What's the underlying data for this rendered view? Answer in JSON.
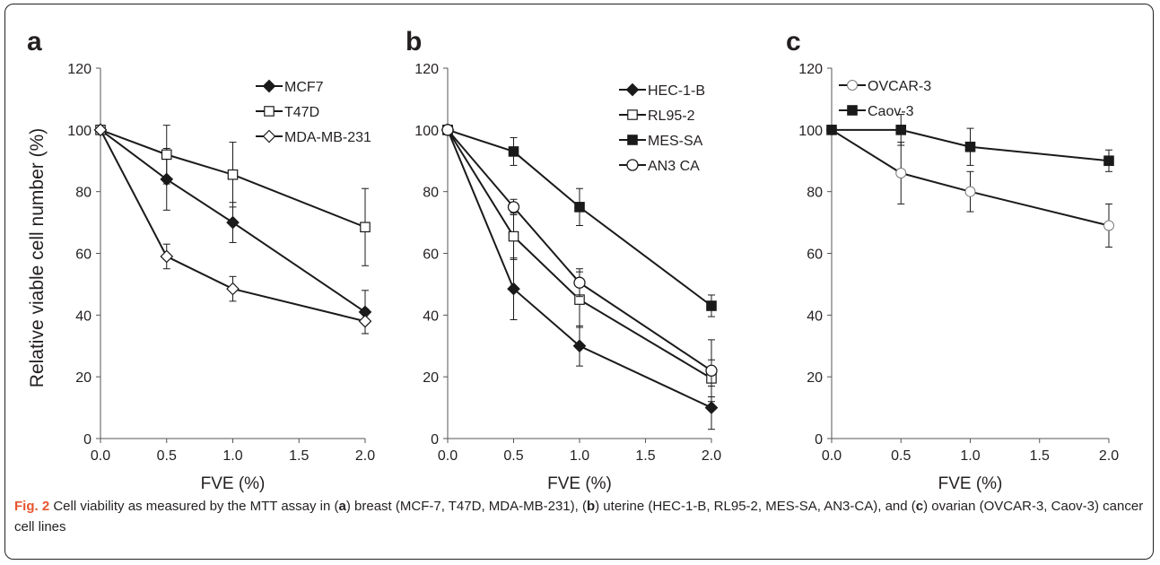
{
  "caption": {
    "label": "Fig. 2",
    "parts": [
      {
        "t": " Cell viability as measured by the MTT assay in ("
      },
      {
        "t": "a",
        "b": true
      },
      {
        "t": ") breast (MCF-7, T47D, MDA-MB-231), ("
      },
      {
        "t": "b",
        "b": true
      },
      {
        "t": ") uterine (HEC-1-B, RL95-2, MES-SA, AN3-CA), and ("
      },
      {
        "t": "c",
        "b": true
      },
      {
        "t": ") ovarian (OVCAR-3, Caov-3) cancer cell lines"
      }
    ]
  },
  "colors": {
    "line": "#1a1a1a",
    "text": "#231f20",
    "label_accent": "#e8542e"
  },
  "chart_data": [
    {
      "panel_label": "a",
      "type": "line",
      "xlabel": "FVE (%)",
      "ylabel": "Relative viable cell number (%)",
      "xlim": [
        0,
        2
      ],
      "ylim": [
        0,
        120
      ],
      "xticks": [
        "0.0",
        "0.5",
        "1.0",
        "1.5",
        "2.0"
      ],
      "yticks": [
        "0",
        "20",
        "40",
        "60",
        "80",
        "100",
        "120"
      ],
      "grid": false,
      "legend_position": "top-right",
      "series": [
        {
          "name": "MCF7",
          "marker": "diamond-filled",
          "x": [
            0,
            0.5,
            1,
            2
          ],
          "y": [
            100,
            84,
            70,
            41
          ],
          "err": [
            0,
            10,
            6.5,
            7
          ]
        },
        {
          "name": "T47D",
          "marker": "square-open",
          "x": [
            0,
            0.5,
            1,
            2
          ],
          "y": [
            100,
            92,
            85.5,
            68.5
          ],
          "err": [
            0,
            9.5,
            10.5,
            12.5
          ]
        },
        {
          "name": "MDA-MB-231",
          "marker": "diamond-open",
          "x": [
            0,
            0.5,
            1,
            2
          ],
          "y": [
            100,
            59,
            48.5,
            38
          ],
          "err": [
            0,
            4,
            4,
            4
          ]
        }
      ]
    },
    {
      "panel_label": "b",
      "type": "line",
      "xlabel": "FVE (%)",
      "ylabel": "",
      "xlim": [
        0,
        2
      ],
      "ylim": [
        0,
        120
      ],
      "xticks": [
        "0.0",
        "0.5",
        "1.0",
        "1.5",
        "2.0"
      ],
      "yticks": [
        "0",
        "20",
        "40",
        "60",
        "80",
        "100",
        "120"
      ],
      "grid": false,
      "legend_position": "top-right",
      "series": [
        {
          "name": "HEC-1-B",
          "marker": "diamond-filled",
          "x": [
            0,
            0.5,
            1,
            2
          ],
          "y": [
            100,
            48.5,
            30,
            10
          ],
          "err": [
            0,
            10,
            6.5,
            7
          ]
        },
        {
          "name": "RL95-2",
          "marker": "square-open",
          "x": [
            0,
            0.5,
            1,
            2
          ],
          "y": [
            100,
            65.5,
            45,
            19.5
          ],
          "err": [
            0,
            7.5,
            9,
            6
          ]
        },
        {
          "name": "MES-SA",
          "marker": "square-filled",
          "x": [
            0,
            0.5,
            1,
            2
          ],
          "y": [
            100,
            93,
            75,
            43
          ],
          "err": [
            0,
            4.5,
            6,
            3.5
          ]
        },
        {
          "name": "AN3 CA",
          "marker": "circle-open",
          "x": [
            0,
            0.5,
            1,
            2
          ],
          "y": [
            100,
            75,
            50.5,
            22
          ],
          "err": [
            0,
            2.5,
            4.5,
            10
          ]
        }
      ]
    },
    {
      "panel_label": "c",
      "type": "line",
      "xlabel": "FVE (%)",
      "ylabel": "",
      "xlim": [
        0,
        2
      ],
      "ylim": [
        0,
        120
      ],
      "xticks": [
        "0.0",
        "0.5",
        "1.0",
        "1.5",
        "2.0"
      ],
      "yticks": [
        "0",
        "20",
        "40",
        "60",
        "80",
        "100",
        "120"
      ],
      "grid": false,
      "legend_position": "top-left",
      "series": [
        {
          "name": "OVCAR-3",
          "marker": "circle-open-gray",
          "x": [
            0,
            0.5,
            1,
            2
          ],
          "y": [
            100,
            86,
            80,
            69
          ],
          "err": [
            0,
            10,
            6.5,
            7
          ]
        },
        {
          "name": "Caov-3",
          "marker": "square-filled",
          "x": [
            0,
            0.5,
            1,
            2
          ],
          "y": [
            100,
            100,
            94.5,
            90
          ],
          "err": [
            0,
            5,
            6,
            3.5
          ]
        }
      ]
    }
  ]
}
